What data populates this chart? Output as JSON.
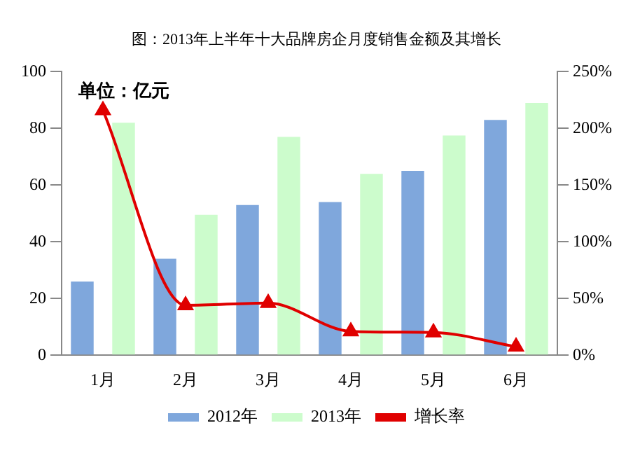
{
  "chart_data": {
    "type": "bar",
    "title": "图：2013年上半年十大品牌房企月度销售金额及其增长",
    "annotations": [
      "单位：亿元"
    ],
    "categories": [
      "1月",
      "2月",
      "3月",
      "4月",
      "5月",
      "6月"
    ],
    "series": [
      {
        "name": "2012年",
        "color": "#7fa7dc",
        "values": [
          26,
          34,
          53,
          54,
          65,
          83
        ]
      },
      {
        "name": "2013年",
        "color": "#ccfccc",
        "values": [
          82,
          49.5,
          77,
          64,
          77.5,
          89
        ]
      },
      {
        "name": "增长率",
        "type": "line",
        "axis": "y2",
        "color": "#e00000",
        "marker": "triangle",
        "values": [
          216,
          44,
          46,
          21,
          20,
          7.5
        ]
      }
    ],
    "ylim": [
      0,
      100
    ],
    "yticks": [
      0,
      20,
      40,
      60,
      80,
      100
    ],
    "y2lim": [
      0,
      250
    ],
    "y2ticks": [
      {
        "value": 0,
        "label": "0%"
      },
      {
        "value": 50,
        "label": "50%"
      },
      {
        "value": 100,
        "label": "100%"
      },
      {
        "value": 150,
        "label": "150%"
      },
      {
        "value": 200,
        "label": "200%"
      },
      {
        "value": 250,
        "label": "250%"
      }
    ],
    "grid": false,
    "legend": "bottom"
  }
}
